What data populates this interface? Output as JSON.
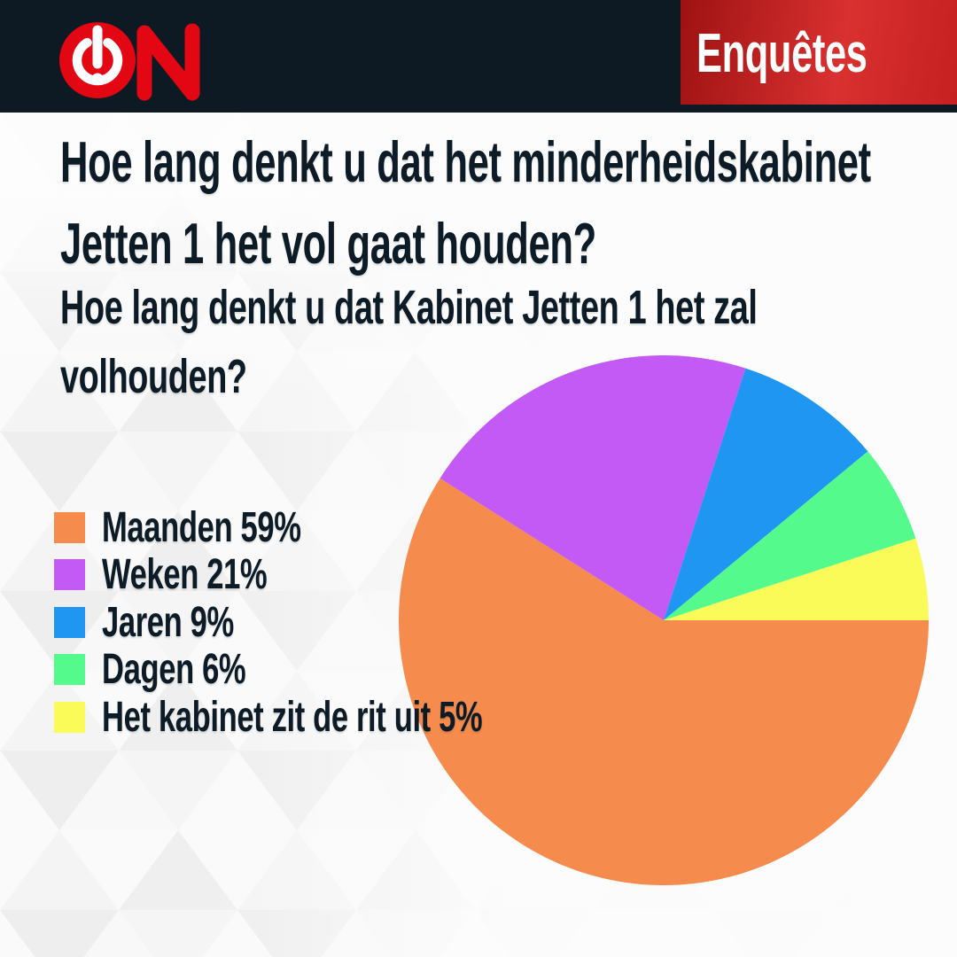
{
  "header": {
    "brand": "ON",
    "logo_icon": "power-exclamation",
    "badge_label": "Enquêtes"
  },
  "question": {
    "title_line1": "Hoe lang denkt u dat het minderheidskabinet",
    "title_line2": "Jetten 1 het vol gaat houden?",
    "subtitle_line1": "Hoe lang denkt u dat Kabinet Jetten 1 het zal",
    "subtitle_line2": "volhouden?"
  },
  "chart_data": {
    "type": "pie",
    "title": "Hoe lang denkt u dat het minderheidskabinet Jetten 1 het vol gaat houden?",
    "subtitle": "Hoe lang denkt u dat Kabinet Jetten 1 het zal volhouden?",
    "labels": [
      "Maanden",
      "Weken",
      "Jaren",
      "Dagen",
      "Het kabinet zit de rit uit"
    ],
    "values": [
      59,
      21,
      9,
      6,
      5
    ],
    "unit": "%",
    "colors": [
      "#f58b4d",
      "#c35af5",
      "#1e96f2",
      "#55fa8c",
      "#fafa58"
    ],
    "legend_labels": [
      "Maanden 59%",
      "Weken 21%",
      "Jaren 9%",
      "Dagen 6%",
      "Het kabinet zit de rit uit 5%"
    ],
    "start_angle_deg": 0,
    "direction": "clockwise",
    "legend_position": "left",
    "grid": false
  },
  "theme": {
    "header_bg": "#0d1a23",
    "logo_red": "#e30613",
    "badge_red_dark": "#9e1212",
    "badge_red": "#d93030",
    "text_color": "#0d1b26",
    "background": "#fafafa"
  }
}
